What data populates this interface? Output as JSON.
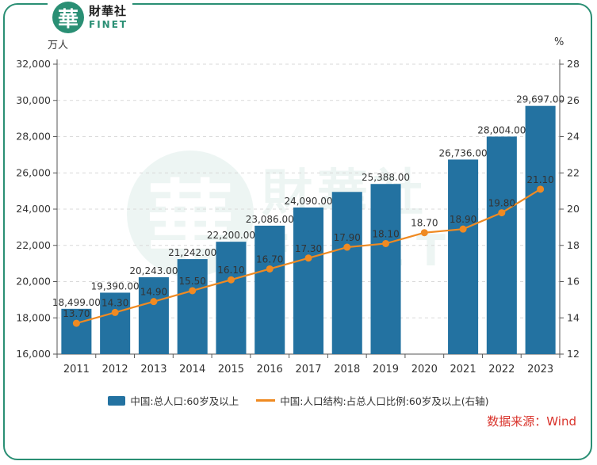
{
  "brand": {
    "logo_glyph": "華",
    "name_cn": "財華社",
    "name_en": "FINET",
    "color": "#2a8f74"
  },
  "units": {
    "left": "万人",
    "right": "%"
  },
  "legend": {
    "bar_label": "中国:总人口:60岁及以上",
    "line_label": "中国:人口结构:占总人口比例:60岁及以上(右轴)"
  },
  "source": "数据来源：Wind",
  "chart_data": {
    "type": "bar+line",
    "categories": [
      "2011",
      "2012",
      "2013",
      "2014",
      "2015",
      "2016",
      "2017",
      "2018",
      "2019",
      "2020",
      "2021",
      "2022",
      "2023"
    ],
    "series": [
      {
        "name": "中国:总人口:60岁及以上",
        "type": "bar",
        "axis": "left",
        "color": "#2372a1",
        "values": [
          18499,
          19390,
          20243,
          21242,
          22200,
          23086,
          24090,
          24949,
          25388,
          null,
          26736,
          28004,
          29697
        ],
        "labels": [
          "18,499.00",
          "19,390.00",
          "20,243.00",
          "21,242.00",
          "22,200.00",
          "23,086.00",
          "24,090.00",
          "",
          "25,388.00",
          "",
          "26,736.00",
          "28,004.00",
          "29,697.00"
        ]
      },
      {
        "name": "中国:人口结构:占总人口比例:60岁及以上(右轴)",
        "type": "line",
        "axis": "right",
        "color": "#ef8a22",
        "values": [
          13.7,
          14.3,
          14.9,
          15.5,
          16.1,
          16.7,
          17.3,
          17.9,
          18.1,
          18.7,
          18.9,
          19.8,
          21.1
        ],
        "labels": [
          "13.70",
          "14.30",
          "14.90",
          "15.50",
          "16.10",
          "16.70",
          "17.30",
          "17.90",
          "18.10",
          "18.70",
          "18.90",
          "19.80",
          "21.10"
        ]
      }
    ],
    "y_left": {
      "min": 16000,
      "max": 32000,
      "step": 2000,
      "ticks": [
        "16,000",
        "18,000",
        "20,000",
        "22,000",
        "24,000",
        "26,000",
        "28,000",
        "30,000",
        "32,000"
      ]
    },
    "y_right": {
      "min": 12,
      "max": 28,
      "step": 2,
      "ticks": [
        "12",
        "14",
        "16",
        "18",
        "20",
        "22",
        "24",
        "26",
        "28"
      ]
    },
    "grid": "horizontal-dashed",
    "legend_position": "bottom"
  }
}
